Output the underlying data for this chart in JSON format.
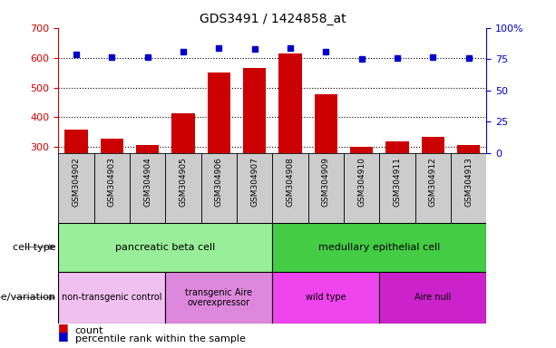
{
  "title": "GDS3491 / 1424858_at",
  "samples": [
    "GSM304902",
    "GSM304903",
    "GSM304904",
    "GSM304905",
    "GSM304906",
    "GSM304907",
    "GSM304908",
    "GSM304909",
    "GSM304910",
    "GSM304911",
    "GSM304912",
    "GSM304913"
  ],
  "counts": [
    358,
    330,
    308,
    413,
    549,
    566,
    614,
    477,
    302,
    318,
    335,
    308
  ],
  "percentile_ranks": [
    79,
    77,
    77,
    81,
    84,
    83,
    84,
    81,
    75,
    76,
    77,
    76
  ],
  "ylim_left": [
    280,
    700
  ],
  "ylim_right": [
    0,
    100
  ],
  "yticks_left": [
    300,
    400,
    500,
    600,
    700
  ],
  "yticks_right": [
    0,
    25,
    50,
    75,
    100
  ],
  "bar_color": "#cc0000",
  "dot_color": "#0000cc",
  "cell_type_groups": [
    {
      "label": "pancreatic beta cell",
      "start": 0,
      "end": 5,
      "color": "#99ee99"
    },
    {
      "label": "medullary epithelial cell",
      "start": 6,
      "end": 11,
      "color": "#44cc44"
    }
  ],
  "genotype_groups": [
    {
      "label": "non-transgenic control",
      "start": 0,
      "end": 2,
      "color": "#f0c0f0"
    },
    {
      "label": "transgenic Aire\noverexpressor",
      "start": 3,
      "end": 5,
      "color": "#dd88dd"
    },
    {
      "label": "wild type",
      "start": 6,
      "end": 8,
      "color": "#ee44ee"
    },
    {
      "label": "Aire null",
      "start": 9,
      "end": 11,
      "color": "#cc22cc"
    }
  ],
  "cell_type_label": "cell type",
  "genotype_label": "genotype/variation",
  "legend_count": "count",
  "legend_pct": "percentile rank within the sample",
  "sample_box_color": "#cccccc",
  "left_label_color": "#888888"
}
